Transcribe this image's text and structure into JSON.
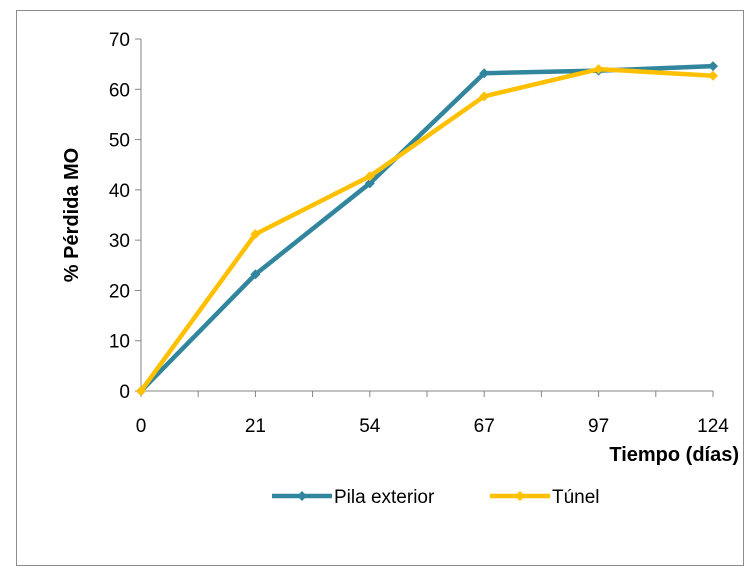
{
  "chart_data": {
    "type": "line",
    "categories": [
      "0",
      "21",
      "54",
      "67",
      "97",
      "124"
    ],
    "xlabel": "Tiempo (días)",
    "ylabel": "% Pérdida MO",
    "ylim": [
      0,
      70
    ],
    "yticks": [
      0,
      10,
      20,
      30,
      40,
      50,
      60,
      70
    ],
    "grid": false,
    "legend_position": "bottom",
    "series": [
      {
        "name": "Pila exterior",
        "color": "#31859c",
        "marker": "diamond",
        "values": [
          0,
          23.2,
          41.3,
          63.2,
          63.7,
          64.6
        ]
      },
      {
        "name": "Túnel",
        "color": "#ffc000",
        "marker": "diamond",
        "values": [
          0,
          31.2,
          42.7,
          58.6,
          64.0,
          62.7
        ]
      }
    ]
  }
}
